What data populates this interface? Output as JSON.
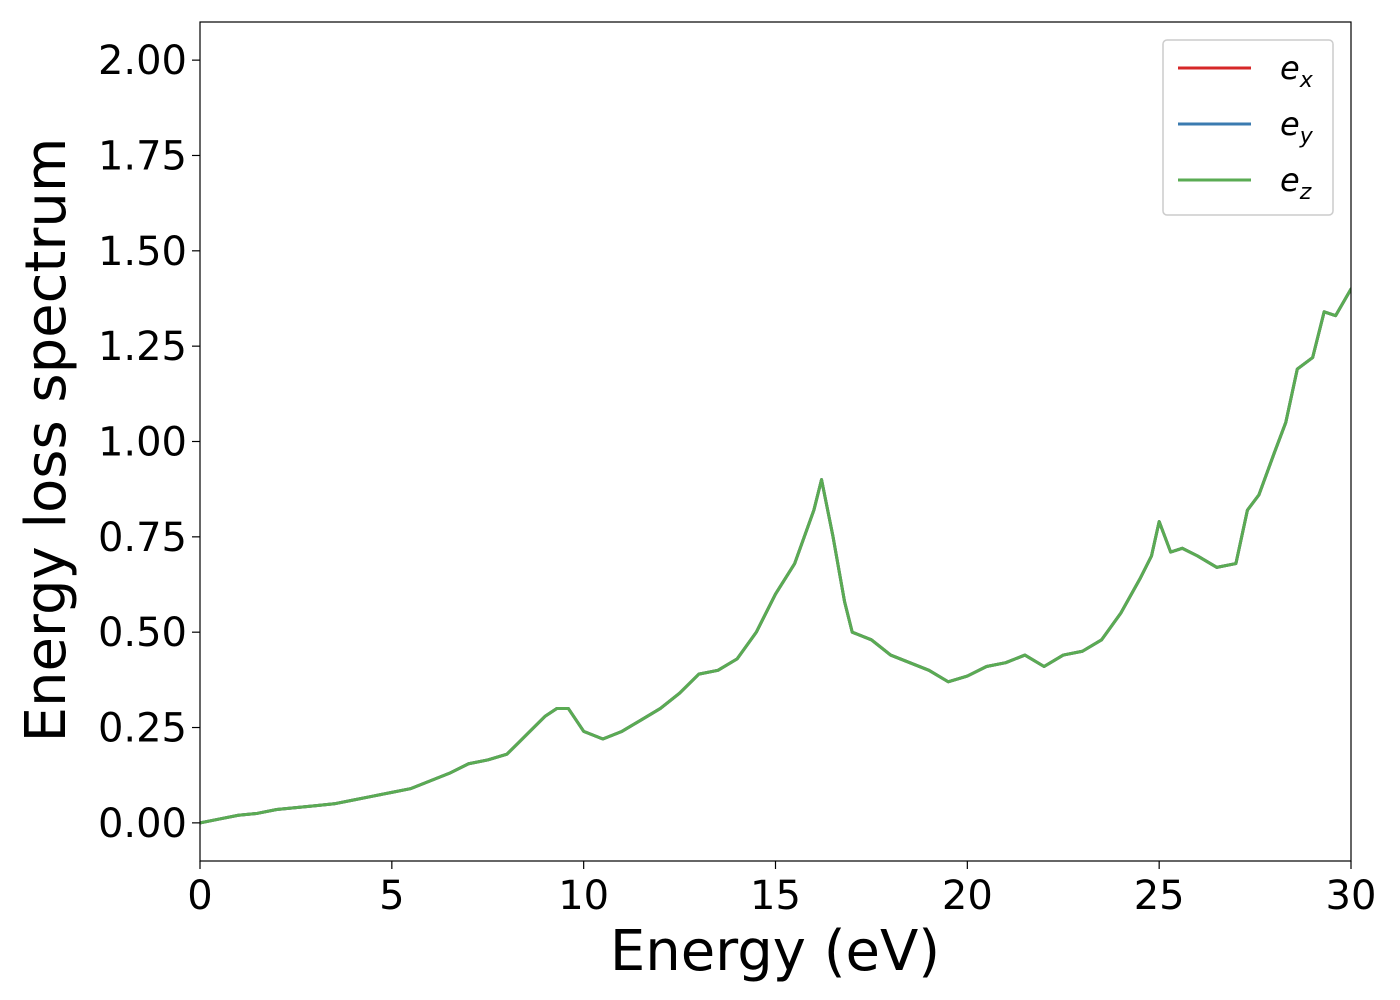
{
  "chart_data": {
    "type": "line",
    "xlabel": "Energy (eV)",
    "ylabel": "Energy loss spectrum",
    "xlim": [
      0,
      30
    ],
    "ylim": [
      -0.1,
      2.1
    ],
    "x_ticks": [
      0,
      5,
      10,
      15,
      20,
      25,
      30
    ],
    "x_tick_labels": [
      "0",
      "5",
      "10",
      "15",
      "20",
      "25",
      "30"
    ],
    "y_ticks": [
      0.0,
      0.25,
      0.5,
      0.75,
      1.0,
      1.25,
      1.5,
      1.75,
      2.0
    ],
    "y_tick_labels": [
      "0.00",
      "0.25",
      "0.50",
      "0.75",
      "1.00",
      "1.25",
      "1.50",
      "1.75",
      "2.00"
    ],
    "grid": false,
    "legend_position": "top-right",
    "x": [
      0,
      0.5,
      1,
      1.5,
      2,
      2.5,
      3,
      3.5,
      4,
      4.5,
      5,
      5.5,
      6,
      6.5,
      7,
      7.5,
      8,
      8.3,
      8.6,
      9,
      9.3,
      9.6,
      10,
      10.5,
      11,
      11.5,
      12,
      12.5,
      13,
      13.5,
      14,
      14.5,
      15,
      15.5,
      16,
      16.2,
      16.5,
      16.8,
      17,
      17.5,
      18,
      18.5,
      19,
      19.5,
      20,
      20.5,
      21,
      21.5,
      22,
      22.5,
      23,
      23.5,
      24,
      24.5,
      24.8,
      25,
      25.3,
      25.6,
      26,
      26.5,
      27,
      27.3,
      27.6,
      28,
      28.3,
      28.6,
      29,
      29.3,
      29.6,
      30
    ],
    "series": [
      {
        "name": "e_x",
        "label_main": "e",
        "label_sub": "x",
        "color": "#d62728",
        "values": [
          0.0,
          0.01,
          0.02,
          0.025,
          0.035,
          0.04,
          0.045,
          0.05,
          0.06,
          0.07,
          0.08,
          0.09,
          0.11,
          0.13,
          0.155,
          0.165,
          0.18,
          0.21,
          0.24,
          0.28,
          0.3,
          0.3,
          0.24,
          0.22,
          0.24,
          0.27,
          0.3,
          0.34,
          0.39,
          0.4,
          0.43,
          0.5,
          0.6,
          0.68,
          0.82,
          0.9,
          0.75,
          0.58,
          0.5,
          0.48,
          0.44,
          0.42,
          0.4,
          0.37,
          0.385,
          0.41,
          0.42,
          0.44,
          0.41,
          0.44,
          0.45,
          0.48,
          0.55,
          0.64,
          0.7,
          0.79,
          0.71,
          0.72,
          0.7,
          0.67,
          0.68,
          0.82,
          0.86,
          0.97,
          1.05,
          1.19,
          1.22,
          1.34,
          1.33,
          1.4
        ]
      },
      {
        "name": "e_y",
        "label_main": "e",
        "label_sub": "y",
        "color": "#3b7bb0",
        "values": [
          0.0,
          0.01,
          0.02,
          0.025,
          0.035,
          0.04,
          0.045,
          0.05,
          0.06,
          0.07,
          0.08,
          0.09,
          0.11,
          0.13,
          0.155,
          0.165,
          0.18,
          0.21,
          0.24,
          0.28,
          0.3,
          0.3,
          0.24,
          0.22,
          0.24,
          0.27,
          0.3,
          0.34,
          0.39,
          0.4,
          0.43,
          0.5,
          0.6,
          0.68,
          0.82,
          0.9,
          0.75,
          0.58,
          0.5,
          0.48,
          0.44,
          0.42,
          0.4,
          0.37,
          0.385,
          0.41,
          0.42,
          0.44,
          0.41,
          0.44,
          0.45,
          0.48,
          0.55,
          0.64,
          0.7,
          0.79,
          0.71,
          0.72,
          0.7,
          0.67,
          0.68,
          0.82,
          0.86,
          0.97,
          1.05,
          1.19,
          1.22,
          1.34,
          1.33,
          1.4
        ]
      },
      {
        "name": "e_z",
        "label_main": "e",
        "label_sub": "z",
        "color": "#5aab53",
        "values": [
          0.0,
          0.01,
          0.02,
          0.025,
          0.035,
          0.04,
          0.045,
          0.05,
          0.06,
          0.07,
          0.08,
          0.09,
          0.11,
          0.13,
          0.155,
          0.165,
          0.18,
          0.21,
          0.24,
          0.28,
          0.3,
          0.3,
          0.24,
          0.22,
          0.24,
          0.27,
          0.3,
          0.34,
          0.39,
          0.4,
          0.43,
          0.5,
          0.6,
          0.68,
          0.82,
          0.9,
          0.75,
          0.58,
          0.5,
          0.48,
          0.44,
          0.42,
          0.4,
          0.37,
          0.385,
          0.41,
          0.42,
          0.44,
          0.41,
          0.44,
          0.45,
          0.48,
          0.55,
          0.64,
          0.7,
          0.79,
          0.71,
          0.72,
          0.7,
          0.67,
          0.68,
          0.82,
          0.86,
          0.97,
          1.05,
          1.19,
          1.22,
          1.34,
          1.33,
          1.4
        ]
      }
    ]
  }
}
